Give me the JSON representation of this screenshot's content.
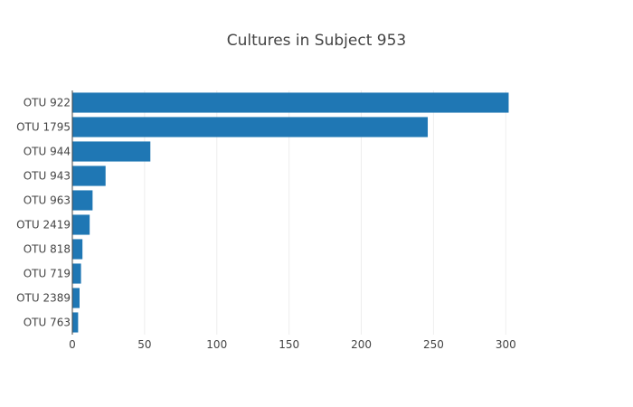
{
  "chart_data": {
    "type": "bar",
    "orientation": "horizontal",
    "title": "Cultures in Subject 953",
    "categories": [
      "OTU 922",
      "OTU 1795",
      "OTU 944",
      "OTU 943",
      "OTU 963",
      "OTU 2419",
      "OTU 818",
      "OTU 719",
      "OTU 2389",
      "OTU 763"
    ],
    "values": [
      302,
      246,
      54,
      23,
      14,
      12,
      7,
      6,
      5,
      4
    ],
    "xlim": [
      0,
      338
    ],
    "xticks": [
      0,
      50,
      100,
      150,
      200,
      250,
      300
    ],
    "grid": true,
    "bar_color": "#1f77b4"
  }
}
